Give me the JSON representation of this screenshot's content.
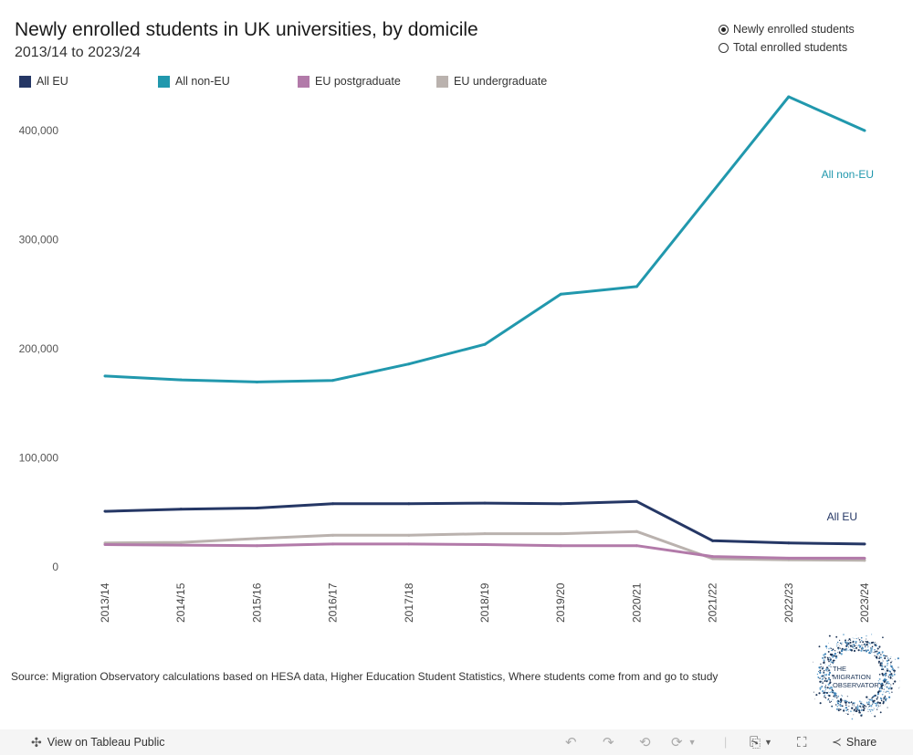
{
  "header": {
    "title": "Newly enrolled students in UK universities, by domicile",
    "subtitle": "2013/14 to 2023/24"
  },
  "measure_toggle": {
    "options": [
      {
        "label": "Newly enrolled students",
        "selected": true
      },
      {
        "label": "Total enrolled students",
        "selected": false
      }
    ]
  },
  "legend": [
    {
      "label": "All EU",
      "color": "#253765"
    },
    {
      "label": "All non-EU",
      "color": "#2198ad"
    },
    {
      "label": "EU postgraduate",
      "color": "#b27aa9"
    },
    {
      "label": "EU undergraduate",
      "color": "#bab2ae"
    }
  ],
  "chart_data": {
    "type": "line",
    "title": "Newly enrolled students in UK universities, by domicile",
    "subtitle": "2013/14 to 2023/24",
    "xlabel": "",
    "ylabel": "",
    "x": [
      "2013/14",
      "2014/15",
      "2015/16",
      "2016/17",
      "2017/18",
      "2018/19",
      "2019/20",
      "2020/21",
      "2021/22",
      "2022/23",
      "2023/24"
    ],
    "yticks": [
      0,
      100000,
      200000,
      300000,
      400000
    ],
    "ytick_labels": [
      "0",
      "100,000",
      "200,000",
      "300,000",
      "400,000"
    ],
    "ylim": [
      0,
      420000
    ],
    "grid": false,
    "legend_position": "top",
    "series": [
      {
        "name": "All non-EU",
        "color": "#2198ad",
        "end_label": "All non-EU",
        "values": [
          175000,
          171500,
          169500,
          171000,
          186000,
          204000,
          250000,
          257000,
          344000,
          431000,
          400000
        ]
      },
      {
        "name": "All EU",
        "color": "#253765",
        "end_label": "All EU",
        "values": [
          51000,
          53000,
          54000,
          58000,
          58000,
          58500,
          58000,
          60000,
          24000,
          22000,
          21000
        ]
      },
      {
        "name": "EU undergraduate",
        "color": "#bab2ae",
        "end_label": "",
        "values": [
          22000,
          22500,
          26000,
          29000,
          29000,
          30500,
          30500,
          32500,
          7500,
          6500,
          6000
        ]
      },
      {
        "name": "EU postgraduate",
        "color": "#b27aa9",
        "end_label": "",
        "values": [
          20500,
          20000,
          19500,
          21000,
          21000,
          20500,
          19500,
          19500,
          9500,
          8000,
          8000
        ]
      }
    ]
  },
  "source": "Source: Migration Observatory calculations based on HESA data, Higher Education Student Statistics, Where students come from and go to study",
  "logo": {
    "lines": [
      "THE",
      "MIGRATION",
      "OBSERVATORY"
    ]
  },
  "toolbar": {
    "view_on_tableau": "View on Tableau Public",
    "share": "Share"
  }
}
